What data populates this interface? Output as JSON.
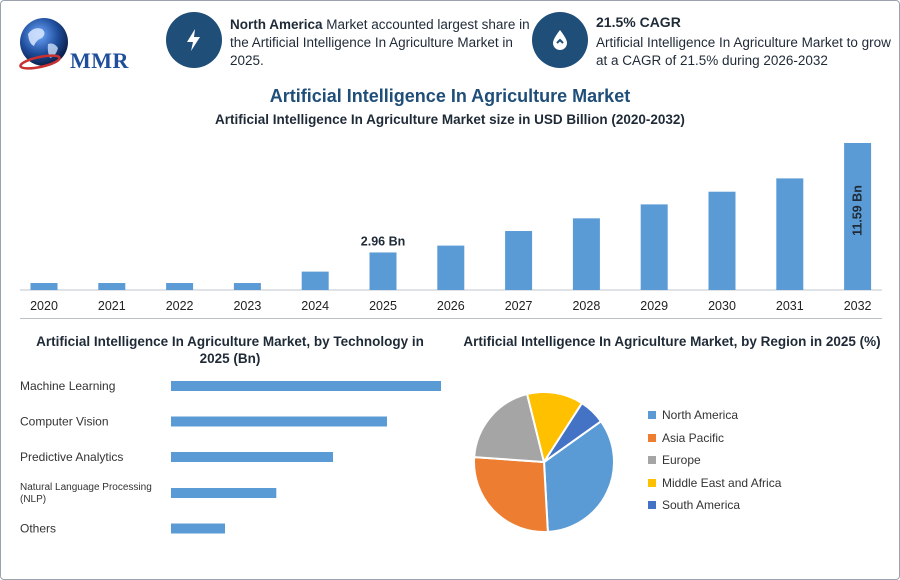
{
  "logo": {
    "text": "MMR"
  },
  "stats": [
    {
      "icon": "lightning-icon",
      "bold": "North America",
      "text": " Market accounted largest share in the Artificial Intelligence In Agriculture Market in 2025."
    },
    {
      "icon": "growth-drop-icon",
      "headline": "21.5% CAGR",
      "text": "Artificial Intelligence In Agriculture Market to grow at a CAGR of 21.5% during 2026-2032"
    }
  ],
  "title": "Artificial Intelligence In Agriculture Market",
  "colors": {
    "bar": "#5b9bd5",
    "title": "#1f4e79",
    "icon_circle": "#1f4e79"
  },
  "chart_data": [
    {
      "type": "bar",
      "title": "Artificial Intelligence In Agriculture Market size in USD Billion (2020-2032)",
      "categories": [
        "2020",
        "2021",
        "2022",
        "2023",
        "2024",
        "2025",
        "2026",
        "2027",
        "2028",
        "2029",
        "2030",
        "2031",
        "2032"
      ],
      "values": [
        0.55,
        0.55,
        0.55,
        0.55,
        1.45,
        2.96,
        3.5,
        4.65,
        5.65,
        6.75,
        7.75,
        8.8,
        11.59
      ],
      "data_labels": [
        {
          "category": "2025",
          "text": "2.96 Bn"
        },
        {
          "category": "2032",
          "text": "11.59 Bn"
        }
      ],
      "ylim": [
        0,
        11.59
      ],
      "grid": false
    },
    {
      "type": "bar",
      "orientation": "horizontal",
      "title": "Artificial Intelligence In Agriculture Market, by Technology in 2025 (Bn)",
      "categories": [
        "Machine Learning",
        "Computer Vision",
        "Predictive Analytics",
        "Natural Language Processing (NLP)",
        "Others"
      ],
      "values": [
        1.0,
        0.8,
        0.6,
        0.39,
        0.2
      ],
      "grid": false
    },
    {
      "type": "pie",
      "title": "Artificial Intelligence In Agriculture Market, by Region in 2025 (%)",
      "labels": [
        "North America",
        "Asia Pacific",
        "Europe",
        "Middle East and Africa",
        "South America"
      ],
      "values": [
        34,
        27,
        20,
        13,
        6
      ],
      "colors": [
        "#5b9bd5",
        "#ed7d31",
        "#a5a5a5",
        "#ffc000",
        "#4472c4"
      ],
      "legend": "right"
    }
  ]
}
